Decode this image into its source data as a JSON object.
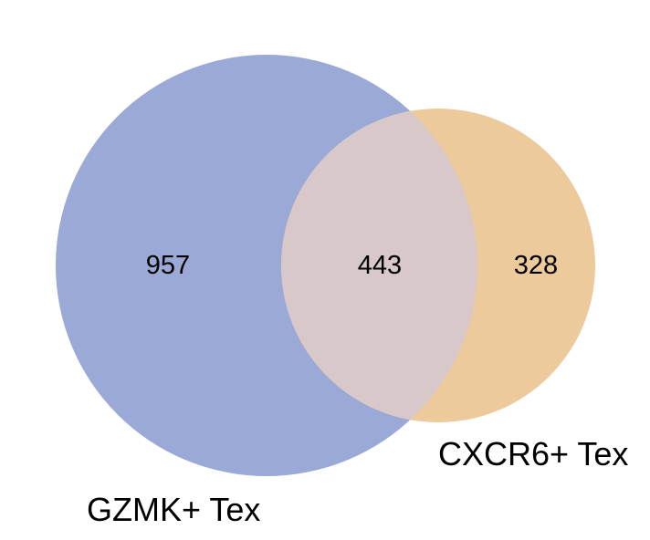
{
  "venn": {
    "sets": [
      {
        "label": "GZMK+ Tex",
        "color": "#9BA9D6"
      },
      {
        "label": "CXCR6+ Tex",
        "color": "#ECCA9B"
      }
    ],
    "overlap_color": "#D8C8C9",
    "regions": {
      "only_set_a": "957",
      "intersection": "443",
      "only_set_b": "328"
    }
  }
}
